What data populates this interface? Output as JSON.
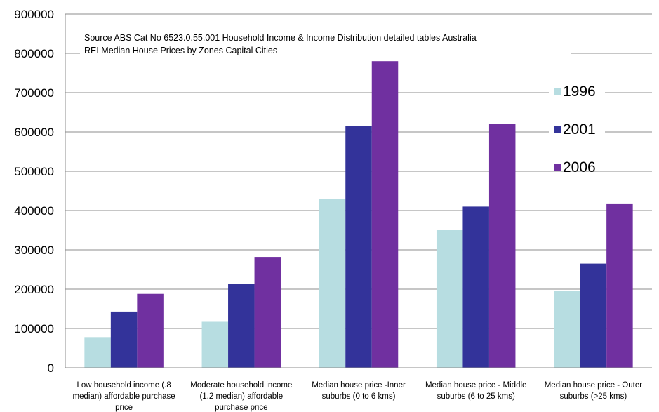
{
  "chart_data": {
    "type": "bar",
    "title": "",
    "xlabel": "",
    "ylabel": "",
    "ylim": [
      0,
      900000
    ],
    "yticks": [
      0,
      100000,
      200000,
      300000,
      400000,
      500000,
      600000,
      700000,
      800000,
      900000
    ],
    "grid": true,
    "legend_position": "right",
    "categories": [
      [
        "Low household income (.8",
        "median) affordable purchase",
        "price"
      ],
      [
        "Moderate household income",
        "(1.2 median) affordable",
        "purchase price"
      ],
      [
        "Median house price -Inner",
        "suburbs (0 to 6 kms)"
      ],
      [
        "Median house price - Middle",
        "suburbs (6 to 25 kms)"
      ],
      [
        "Median house price - Outer",
        "suburbs (>25 kms)"
      ]
    ],
    "series": [
      {
        "name": "1996",
        "color": "#b7dde1",
        "values": [
          78000,
          117000,
          430000,
          350000,
          195000
        ]
      },
      {
        "name": "2001",
        "color": "#33339a",
        "values": [
          143000,
          213000,
          615000,
          410000,
          265000
        ]
      },
      {
        "name": "2006",
        "color": "#7030a0",
        "values": [
          188000,
          282000,
          780000,
          620000,
          418000
        ]
      }
    ],
    "annotations": [
      "Source ABS Cat No 6523.0.55.001 Household Income & Income Distribution detailed tables Australia",
      "REI Median House Prices by Zones Capital Cities"
    ]
  }
}
